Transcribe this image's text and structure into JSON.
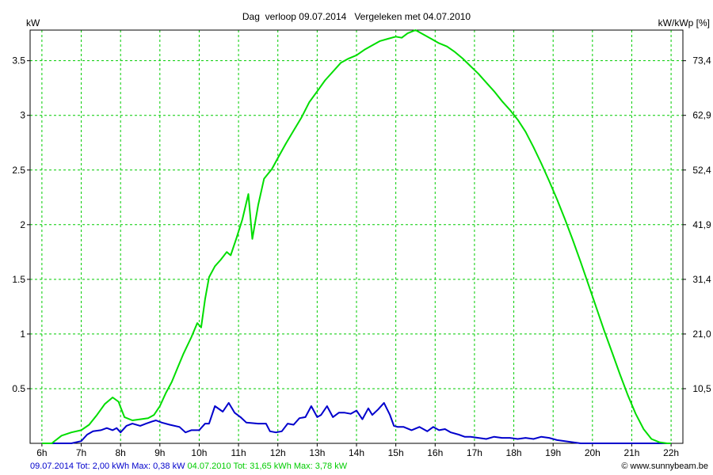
{
  "chart_data": {
    "type": "line",
    "title": "Dag  verloop 09.07.2014   Vergeleken met 04.07.2010",
    "ylabel_left": "kW",
    "ylabel_right": "kW/kWp [%]",
    "xlim": [
      5.7,
      22.3
    ],
    "ylim": [
      0,
      3.78
    ],
    "x_ticks": [
      6,
      7,
      8,
      9,
      10,
      11,
      12,
      13,
      14,
      15,
      16,
      17,
      18,
      19,
      20,
      21,
      22
    ],
    "x_tick_labels": [
      "6h",
      "7h",
      "8h",
      "9h",
      "10h",
      "11h",
      "12h",
      "13h",
      "14h",
      "15h",
      "16h",
      "17h",
      "18h",
      "19h",
      "20h",
      "21h",
      "22h"
    ],
    "y_ticks_left": [
      0.5,
      1,
      1.5,
      2,
      2.5,
      3,
      3.5
    ],
    "y_tick_labels_left": [
      "0.5",
      "1",
      "1.5",
      "2",
      "2.5",
      "3",
      "3.5"
    ],
    "y_tick_labels_right": [
      "10,5",
      "21,0",
      "31,4",
      "41,9",
      "52,4",
      "62,9",
      "73,4"
    ],
    "grid": true,
    "grid_color": "#00cc00",
    "series": [
      {
        "name": "09.07.2014",
        "color": "#0000cc",
        "x": [
          6.0,
          6.25,
          6.5,
          6.75,
          7.0,
          7.15,
          7.3,
          7.5,
          7.65,
          7.8,
          7.9,
          8.0,
          8.15,
          8.3,
          8.5,
          8.65,
          8.8,
          8.9,
          9.05,
          9.25,
          9.5,
          9.65,
          9.8,
          10.0,
          10.15,
          10.25,
          10.4,
          10.6,
          10.75,
          10.9,
          11.05,
          11.2,
          11.5,
          11.7,
          11.8,
          11.95,
          12.1,
          12.25,
          12.4,
          12.55,
          12.7,
          12.85,
          13.0,
          13.1,
          13.25,
          13.4,
          13.55,
          13.7,
          13.85,
          14.0,
          14.15,
          14.3,
          14.4,
          14.55,
          14.7,
          14.85,
          14.95,
          15.05,
          15.2,
          15.4,
          15.6,
          15.8,
          15.95,
          16.1,
          16.25,
          16.4,
          16.6,
          16.75,
          16.9,
          17.1,
          17.3,
          17.5,
          17.7,
          17.9,
          18.1,
          18.3,
          18.5,
          18.7,
          18.9,
          19.1,
          19.3,
          19.5,
          19.7,
          20.0,
          20.5,
          21.0,
          21.5,
          22.0
        ],
        "values": [
          0,
          0,
          0,
          0,
          0.02,
          0.08,
          0.11,
          0.12,
          0.14,
          0.12,
          0.14,
          0.1,
          0.16,
          0.18,
          0.16,
          0.18,
          0.2,
          0.21,
          0.19,
          0.17,
          0.15,
          0.1,
          0.12,
          0.12,
          0.18,
          0.18,
          0.34,
          0.29,
          0.37,
          0.28,
          0.24,
          0.19,
          0.18,
          0.18,
          0.11,
          0.1,
          0.11,
          0.18,
          0.17,
          0.23,
          0.24,
          0.34,
          0.24,
          0.26,
          0.34,
          0.24,
          0.28,
          0.28,
          0.27,
          0.3,
          0.22,
          0.32,
          0.26,
          0.31,
          0.37,
          0.26,
          0.16,
          0.15,
          0.15,
          0.12,
          0.15,
          0.11,
          0.15,
          0.12,
          0.13,
          0.1,
          0.08,
          0.06,
          0.06,
          0.05,
          0.04,
          0.06,
          0.05,
          0.05,
          0.04,
          0.05,
          0.04,
          0.06,
          0.05,
          0.03,
          0.02,
          0.01,
          0,
          0,
          0,
          0,
          0,
          0
        ]
      },
      {
        "name": "04.07.2010",
        "color": "#00dd00",
        "x": [
          6.0,
          6.25,
          6.5,
          6.75,
          7.0,
          7.2,
          7.4,
          7.6,
          7.8,
          7.95,
          8.0,
          8.1,
          8.3,
          8.5,
          8.7,
          8.85,
          9.0,
          9.15,
          9.3,
          9.45,
          9.6,
          9.8,
          9.95,
          10.05,
          10.15,
          10.25,
          10.4,
          10.55,
          10.7,
          10.8,
          10.95,
          11.1,
          11.25,
          11.35,
          11.5,
          11.65,
          11.85,
          12.0,
          12.2,
          12.4,
          12.6,
          12.8,
          13.0,
          13.2,
          13.4,
          13.6,
          13.8,
          14.0,
          14.2,
          14.4,
          14.6,
          14.8,
          15.0,
          15.15,
          15.3,
          15.5,
          15.7,
          15.9,
          16.1,
          16.3,
          16.5,
          16.7,
          16.9,
          17.1,
          17.3,
          17.5,
          17.7,
          17.9,
          18.1,
          18.3,
          18.5,
          18.7,
          18.9,
          19.1,
          19.3,
          19.5,
          19.7,
          19.9,
          20.1,
          20.3,
          20.5,
          20.7,
          20.9,
          21.1,
          21.3,
          21.5,
          21.7,
          21.9,
          22.0
        ],
        "values": [
          0,
          0,
          0.07,
          0.1,
          0.12,
          0.17,
          0.26,
          0.36,
          0.42,
          0.38,
          0.33,
          0.24,
          0.21,
          0.22,
          0.23,
          0.26,
          0.34,
          0.46,
          0.56,
          0.69,
          0.82,
          0.97,
          1.1,
          1.06,
          1.32,
          1.52,
          1.62,
          1.68,
          1.75,
          1.72,
          1.88,
          2.05,
          2.28,
          1.87,
          2.18,
          2.42,
          2.51,
          2.61,
          2.74,
          2.86,
          2.98,
          3.12,
          3.22,
          3.32,
          3.4,
          3.48,
          3.52,
          3.55,
          3.6,
          3.64,
          3.68,
          3.7,
          3.72,
          3.71,
          3.75,
          3.78,
          3.74,
          3.7,
          3.66,
          3.63,
          3.58,
          3.52,
          3.45,
          3.38,
          3.3,
          3.22,
          3.13,
          3.05,
          2.96,
          2.85,
          2.71,
          2.56,
          2.4,
          2.23,
          2.05,
          1.86,
          1.66,
          1.45,
          1.24,
          1.03,
          0.83,
          0.63,
          0.44,
          0.27,
          0.13,
          0.04,
          0.01,
          0,
          0
        ]
      }
    ]
  },
  "footer": {
    "left_blue": "09.07.2014 Tot: 2,00 kWh Max: 0,38 kW",
    "left_green": "04.07.2010 Tot: 31,65 kWh Max: 3,78 kW",
    "right": "© www.sunnybeam.be"
  }
}
